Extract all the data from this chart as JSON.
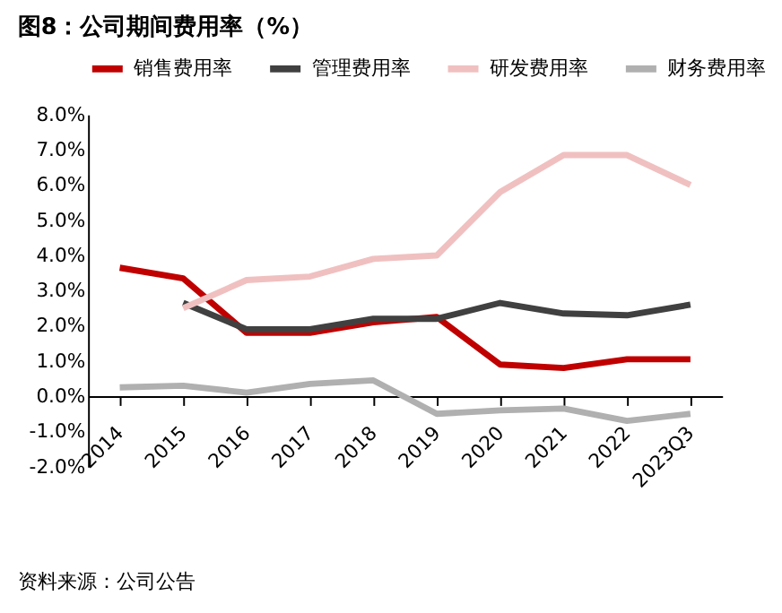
{
  "chart_data": {
    "type": "line",
    "title": "图8：公司期间费用率（%）",
    "categories": [
      "2014",
      "2015",
      "2016",
      "2017",
      "2018",
      "2019",
      "2020",
      "2021",
      "2022",
      "2023Q3"
    ],
    "series": [
      {
        "name": "销售费用率",
        "color": "#c00000",
        "values": [
          3.65,
          3.35,
          1.8,
          1.8,
          2.1,
          2.25,
          0.9,
          0.8,
          1.05,
          1.05
        ]
      },
      {
        "name": "管理费用率",
        "color": "#404040",
        "values": [
          null,
          2.65,
          1.9,
          1.9,
          2.2,
          2.2,
          2.65,
          2.35,
          2.3,
          2.6
        ]
      },
      {
        "name": "研发费用率",
        "color": "#f0c0c0",
        "values": [
          null,
          2.5,
          3.3,
          3.4,
          3.9,
          4.0,
          5.8,
          6.85,
          6.85,
          6.0
        ]
      },
      {
        "name": "财务费用率",
        "color": "#b0b0b0",
        "values": [
          0.25,
          0.3,
          0.1,
          0.35,
          0.45,
          -0.5,
          -0.4,
          -0.35,
          -0.7,
          -0.5
        ]
      }
    ],
    "ylim": [
      -2,
      8
    ],
    "yticks": [
      {
        "value": -2,
        "label": "-2.0%"
      },
      {
        "value": -1,
        "label": "-1.0%"
      },
      {
        "value": 0,
        "label": "0.0%"
      },
      {
        "value": 1,
        "label": "1.0%"
      },
      {
        "value": 2,
        "label": "2.0%"
      },
      {
        "value": 3,
        "label": "3.0%"
      },
      {
        "value": 4,
        "label": "4.0%"
      },
      {
        "value": 5,
        "label": "5.0%"
      },
      {
        "value": 6,
        "label": "6.0%"
      },
      {
        "value": 7,
        "label": "7.0%"
      },
      {
        "value": 8,
        "label": "8.0%"
      }
    ],
    "legend": "top",
    "grid": false,
    "marker": "none",
    "line_style": "solid",
    "annotations": [
      "资料来源：公司公告"
    ]
  }
}
